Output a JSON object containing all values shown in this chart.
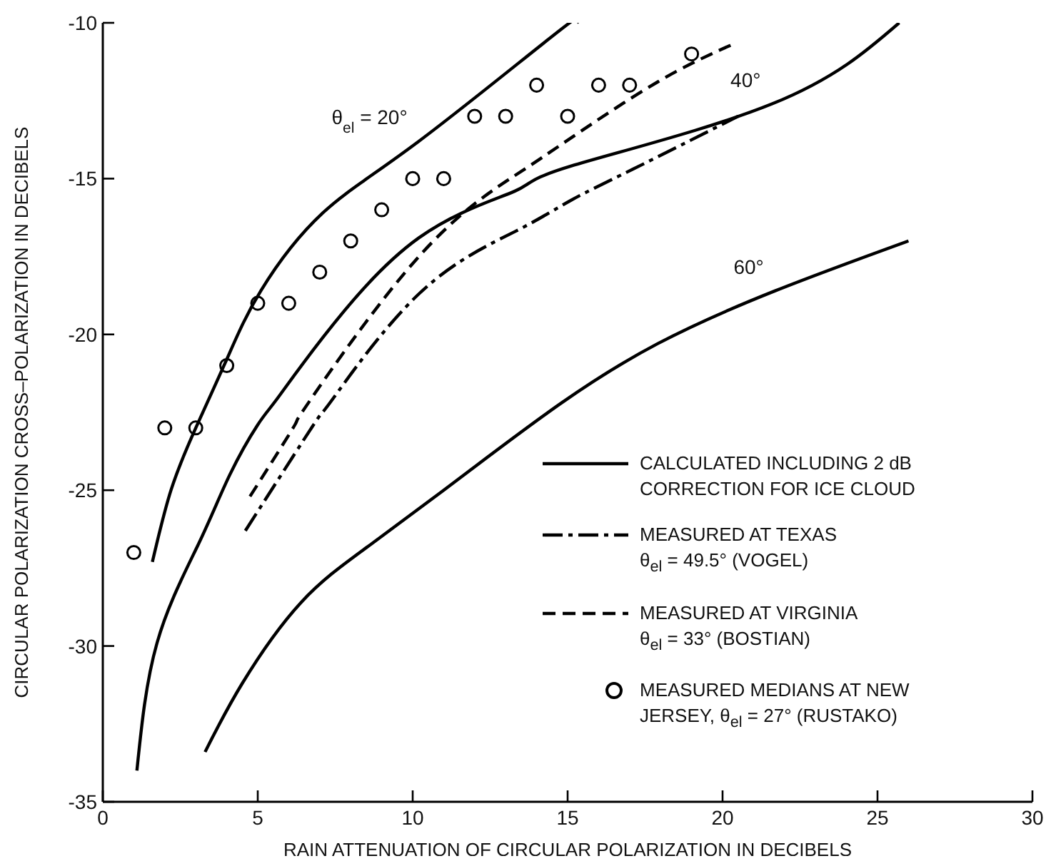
{
  "chart_data": {
    "type": "line",
    "xlabel": "RAIN ATTENUATION OF CIRCULAR POLARIZATION IN DECIBELS",
    "ylabel": "CIRCULAR POLARIZATION CROSS–POLARIZATION IN DECIBELS",
    "xlim": [
      0,
      30
    ],
    "xticks": [
      0,
      5,
      10,
      15,
      20,
      25,
      30
    ],
    "ylim": [
      -35,
      -10
    ],
    "yticks": [
      -35,
      -30,
      -25,
      -20,
      -15,
      -10
    ],
    "grid": false,
    "legend": "bottom right",
    "marker": "none",
    "series": [
      {
        "name": "CALCULATED INCLUDING 2 dB\nCORRECTION FOR ICE CLOUD",
        "color": "#000000",
        "line_style": "solid",
        "x": [
          1.6,
          2.2,
          3.0,
          4.0,
          5.1,
          7.1,
          10.2,
          14.8,
          15.3
        ],
        "values": [
          -27.3,
          -25.0,
          -23.0,
          -20.8,
          -18.6,
          -16.1,
          -13.8,
          -10.2,
          -10
        ]
      },
      {
        "color": "#000000",
        "line_style": "solid",
        "x": [
          1.1,
          1.75,
          3.1,
          4.1,
          5.0,
          5.6,
          7.1,
          10.2,
          13.3,
          15.1,
          21.6,
          25.7
        ],
        "values": [
          -34.0,
          -29.9,
          -26.7,
          -24.5,
          -22.9,
          -22.1,
          -20.1,
          -16.9,
          -15.4,
          -14.6,
          -12.6,
          -10
        ]
      },
      {
        "color": "#000000",
        "line_style": "solid",
        "x": [
          3.3,
          4.5,
          6.4,
          8.7,
          11.8,
          14.8,
          17.9,
          21.7,
          26.0
        ],
        "values": [
          -33.4,
          -31.2,
          -28.6,
          -26.7,
          -24.4,
          -22.2,
          -20.3,
          -18.6,
          -17.0
        ]
      },
      {
        "name": "MEASURED AT TEXAS\nθ$_{el}$ = 49.5° (VOGEL)",
        "color": "#000000",
        "line_style": "dashdot",
        "x": [
          4.6,
          6.8,
          7.4,
          10.2,
          13.3,
          15.1,
          17.1,
          20.5
        ],
        "values": [
          -26.3,
          -22.9,
          -22.1,
          -18.7,
          -16.7,
          -15.7,
          -14.7,
          -13.0
        ]
      },
      {
        "name": "MEASURED AT VIRGINIA\nθ$_{el}$ = 33° (BOSTIAN)",
        "color": "#000000",
        "line_style": "dashed",
        "x": [
          4.75,
          6.2,
          6.7,
          10.2,
          13.3,
          15.1,
          17.9,
          20.3
        ],
        "values": [
          -25.2,
          -22.9,
          -22.1,
          -17.5,
          -14.9,
          -13.7,
          -11.9,
          -10.7
        ]
      },
      {
        "name": "MEASURED MEDIANS AT NEW\nJERSEY, θ$_{el}$ = 27° (RUSTAKO)",
        "type": "scatter",
        "marker": "circle",
        "color": "#000000",
        "x": [
          1,
          2,
          3,
          4,
          5,
          6,
          7,
          8,
          9,
          10,
          11,
          12,
          13,
          14,
          15,
          16,
          17,
          19
        ],
        "values": [
          -27,
          -23,
          -23,
          -21,
          -19,
          -19,
          -18,
          -17,
          -16,
          -15,
          -15,
          -13,
          -13,
          -12,
          -13,
          -12,
          -12,
          -11
        ]
      }
    ],
    "annotations": [
      {
        "text": "θ$_{el}$ = 20°",
        "x": 10.2,
        "y": -13.8
      },
      {
        "text": "40°",
        "x": 21.6,
        "y": -12.6
      },
      {
        "text": "60°",
        "x": 21.7,
        "y": -18.6
      }
    ]
  }
}
